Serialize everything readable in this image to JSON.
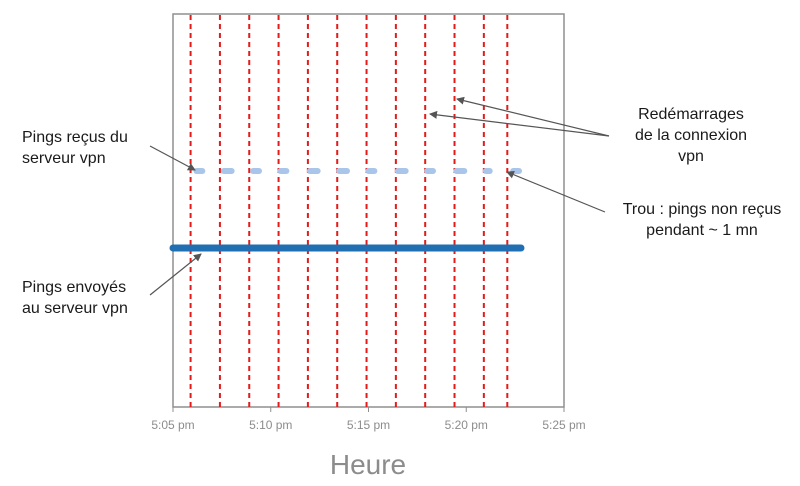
{
  "chart_data": {
    "type": "line",
    "xlabel": "Heure",
    "x_ticks": [
      "5:05 pm",
      "5:10 pm",
      "5:15 pm",
      "5:20 pm",
      "5:25 pm"
    ],
    "x_tick_minutes": [
      5,
      10,
      15,
      20,
      25
    ],
    "xlim_minutes": [
      5,
      25
    ],
    "grid": false,
    "restart_lines_minutes": [
      5.9,
      7.4,
      8.9,
      10.4,
      11.9,
      13.4,
      14.9,
      16.4,
      17.9,
      19.4,
      20.9,
      22.1
    ],
    "series": [
      {
        "name": "Pings envoyés au serveur vpn",
        "color": "#1f6fb2",
        "segments": [
          [
            5.0,
            22.8
          ]
        ]
      },
      {
        "name": "Pings reçus du serveur vpn",
        "color": "#a9c6ea",
        "segments": [
          [
            6.2,
            6.5
          ],
          [
            7.6,
            8.0
          ],
          [
            9.1,
            9.4
          ],
          [
            10.5,
            10.8
          ],
          [
            12.0,
            12.4
          ],
          [
            13.5,
            13.9
          ],
          [
            15.0,
            15.3
          ],
          [
            16.5,
            16.9
          ],
          [
            18.0,
            18.3
          ],
          [
            19.5,
            19.9
          ],
          [
            21.0,
            21.2
          ],
          [
            22.4,
            22.7
          ]
        ]
      }
    ],
    "restart_color": "#e41b1b"
  },
  "annotations": {
    "received": [
      "Pings reçus du",
      "serveur vpn"
    ],
    "sent": [
      "Pings envoyés",
      "au serveur vpn"
    ],
    "restarts": [
      "Redémarrages",
      "de la connexion",
      "vpn"
    ],
    "gap": [
      "Trou : pings non reçus",
      "pendant ~ 1 mn"
    ]
  }
}
